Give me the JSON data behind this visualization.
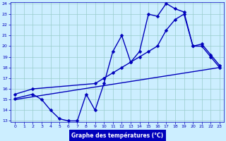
{
  "line1_x": [
    0,
    2,
    3,
    4,
    5,
    6,
    7,
    8,
    9,
    10,
    11,
    12,
    13,
    14,
    15,
    16,
    17,
    18,
    19,
    20,
    21,
    22,
    23
  ],
  "line1_y": [
    15.1,
    15.5,
    15.0,
    14.0,
    13.2,
    13.0,
    13.0,
    15.5,
    14.0,
    16.5,
    19.5,
    21.0,
    18.5,
    19.5,
    23.0,
    22.8,
    24.0,
    23.5,
    23.2,
    20.0,
    20.0,
    19.0,
    18.0
  ],
  "line2_x": [
    0,
    2,
    9,
    10,
    11,
    12,
    13,
    14,
    15,
    16,
    17,
    18,
    19,
    20,
    21,
    22,
    23
  ],
  "line2_y": [
    15.5,
    16.0,
    16.5,
    17.0,
    17.5,
    18.0,
    18.5,
    19.0,
    19.5,
    20.0,
    21.5,
    22.5,
    23.0,
    20.0,
    20.2,
    19.2,
    18.2
  ],
  "line3_x": [
    0,
    23
  ],
  "line3_y": [
    15.0,
    18.0
  ],
  "bg_color": "#cceeff",
  "line_color": "#0000bb",
  "grid_color": "#99cccc",
  "xlabel": "Graphe des températures (°C)",
  "xlabel_color": "#ffffff",
  "xlabel_bg": "#0000bb",
  "ylim": [
    13,
    24
  ],
  "xlim": [
    -0.5,
    23.5
  ],
  "yticks": [
    13,
    14,
    15,
    16,
    17,
    18,
    19,
    20,
    21,
    22,
    23,
    24
  ],
  "xticks": [
    0,
    1,
    2,
    3,
    4,
    5,
    6,
    7,
    8,
    9,
    10,
    11,
    12,
    13,
    14,
    15,
    16,
    17,
    18,
    19,
    20,
    21,
    22,
    23
  ],
  "markersize": 2.5,
  "linewidth": 1.0
}
